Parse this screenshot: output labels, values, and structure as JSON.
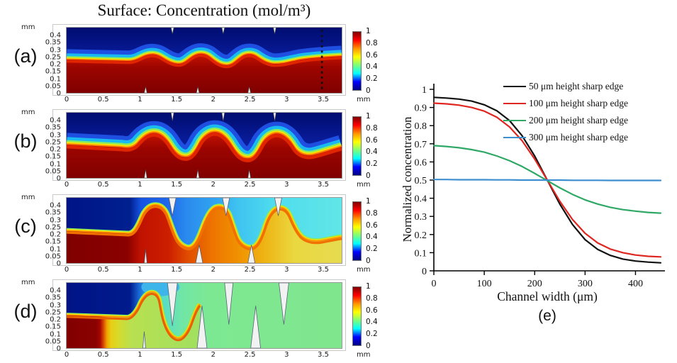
{
  "title": "Surface: Concentration (mol/m³)",
  "panel_axes": {
    "y_unit": "mm",
    "x_unit": "mm",
    "y_ticks": [
      "0.4",
      "0.35",
      "0.3",
      "0.25",
      "0.2",
      "0.15",
      "0.1",
      "0.05",
      "0"
    ],
    "x_ticks": [
      "0",
      "0.5",
      "1",
      "1.5",
      "2",
      "2.5",
      "3",
      "3.5"
    ]
  },
  "colorbar": {
    "ticks": [
      "1",
      "0.8",
      "0.6",
      "0.4",
      "0.2",
      "0"
    ],
    "gradient": [
      "#7f0000",
      "#ff0000",
      "#ff9400",
      "#ffff00",
      "#7dff7a",
      "#00ffff",
      "#0000ff",
      "#00007f"
    ]
  },
  "panels": [
    {
      "label": "(a)",
      "dashed_line_x_mm": "3.5"
    },
    {
      "label": "(b)"
    },
    {
      "label": "(c)"
    },
    {
      "label": "(d)"
    }
  ],
  "chart_data": {
    "type": "line",
    "panel_label": "(e)",
    "xlabel": "Channel width (μm)",
    "ylabel": "Normalized concentration",
    "xlim": [
      0,
      450
    ],
    "ylim": [
      0,
      1
    ],
    "x_ticks": [
      "0",
      "100",
      "200",
      "300",
      "400"
    ],
    "y_ticks": [
      "0",
      "0.1",
      "0.2",
      "0.3",
      "0.4",
      "0.5",
      "0.6",
      "0.7",
      "0.8",
      "0.9",
      "1"
    ],
    "grid": false,
    "legend_position": "top-right",
    "series": [
      {
        "name": "50 μm height sharp edge",
        "color": "#111111",
        "x": [
          0,
          25,
          50,
          75,
          100,
          125,
          150,
          175,
          200,
          225,
          250,
          275,
          300,
          325,
          350,
          375,
          400,
          425,
          450
        ],
        "y": [
          0.956,
          0.952,
          0.946,
          0.935,
          0.915,
          0.882,
          0.828,
          0.745,
          0.633,
          0.5,
          0.367,
          0.255,
          0.172,
          0.118,
          0.085,
          0.065,
          0.054,
          0.048,
          0.044
        ]
      },
      {
        "name": "100 μm height sharp edge",
        "color": "#e02620",
        "x": [
          0,
          25,
          50,
          75,
          100,
          125,
          150,
          175,
          200,
          225,
          250,
          275,
          300,
          325,
          350,
          375,
          400,
          425,
          450
        ],
        "y": [
          0.924,
          0.92,
          0.913,
          0.9,
          0.88,
          0.846,
          0.793,
          0.717,
          0.616,
          0.5,
          0.383,
          0.283,
          0.207,
          0.154,
          0.12,
          0.1,
          0.087,
          0.08,
          0.077
        ]
      },
      {
        "name": "200 μm height sharp edge",
        "color": "#2fa866",
        "x": [
          0,
          25,
          50,
          75,
          100,
          125,
          150,
          175,
          200,
          225,
          250,
          275,
          300,
          325,
          350,
          375,
          400,
          425,
          450
        ],
        "y": [
          0.69,
          0.685,
          0.678,
          0.668,
          0.654,
          0.633,
          0.607,
          0.575,
          0.537,
          0.497,
          0.457,
          0.421,
          0.391,
          0.368,
          0.35,
          0.337,
          0.329,
          0.322,
          0.318
        ]
      },
      {
        "name": "300 μm height sharp edge",
        "color": "#3e8fd0",
        "x": [
          0,
          25,
          50,
          75,
          100,
          125,
          150,
          175,
          200,
          225,
          250,
          275,
          300,
          325,
          350,
          375,
          400,
          425,
          450
        ],
        "y": [
          0.503,
          0.503,
          0.502,
          0.502,
          0.502,
          0.501,
          0.501,
          0.5,
          0.5,
          0.5,
          0.5,
          0.499,
          0.499,
          0.499,
          0.498,
          0.498,
          0.498,
          0.498,
          0.498
        ]
      }
    ]
  }
}
